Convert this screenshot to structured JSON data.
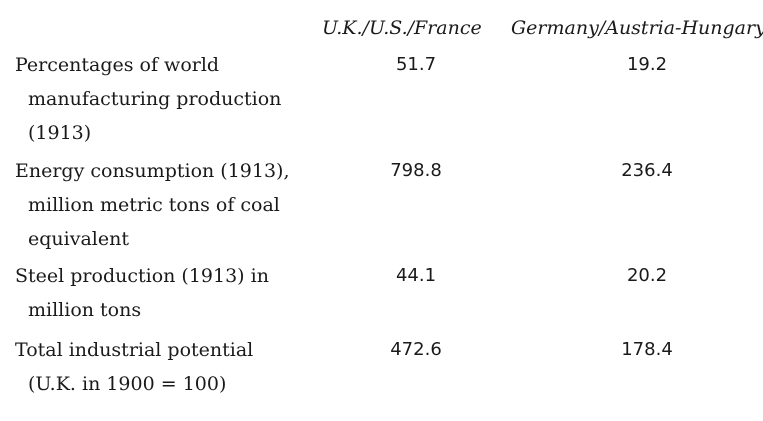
{
  "table": {
    "columns": [
      "U.K./U.S./France",
      "Germany/Austria-Hungary"
    ],
    "rows": [
      {
        "label_lines": [
          "Percentages of world",
          "manufacturing production",
          "(1913)"
        ],
        "values": [
          "51.7",
          "19.2"
        ]
      },
      {
        "label_lines": [
          "Energy consumption (1913),",
          "million metric tons of coal",
          "equivalent"
        ],
        "values": [
          "798.8",
          "236.4"
        ]
      },
      {
        "label_lines": [
          "Steel production (1913) in",
          "million tons"
        ],
        "values": [
          "44.1",
          "20.2"
        ]
      },
      {
        "label_lines": [
          "Total industrial potential",
          "(U.K. in 1900 = 100)"
        ],
        "values": [
          "472.6",
          "178.4"
        ]
      }
    ]
  }
}
